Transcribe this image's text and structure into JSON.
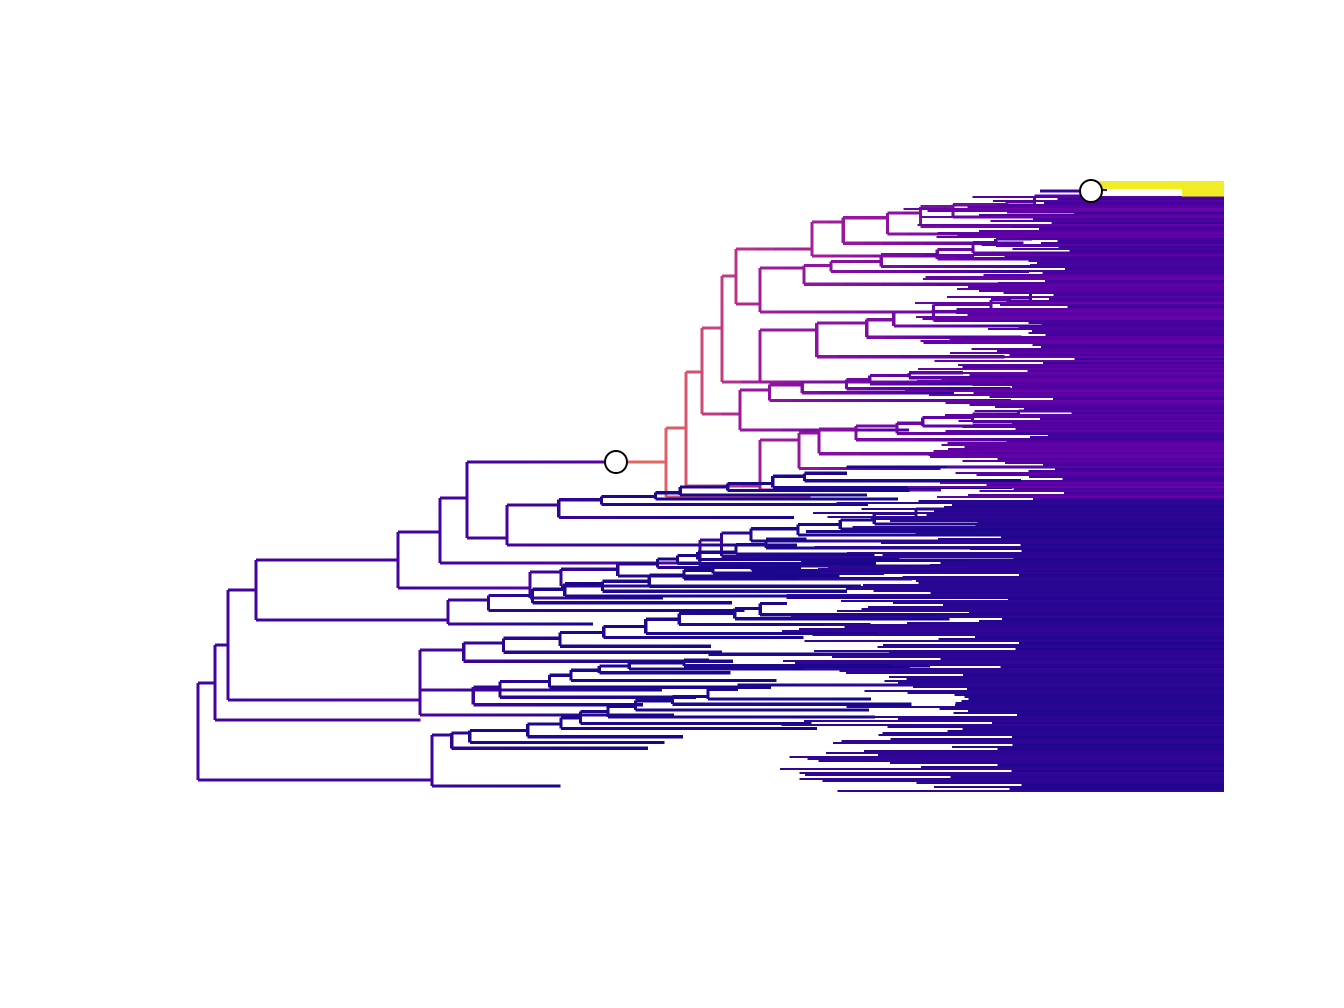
{
  "diagram": {
    "type": "phylogenetic-tree",
    "orientation": "rightwards",
    "branch_color_scale": "plasma",
    "colors": {
      "background": "#ffffff",
      "scale_low": "#0d0887",
      "scale_mid_low": "#5c01a6",
      "scale_mid": "#9c179e",
      "scale_mid_high": "#cc4778",
      "scale_high": "#ed7953",
      "scale_top": "#f0f921",
      "node_marker_fill": "#ffffff",
      "node_marker_stroke": "#000000"
    },
    "highlighted_nodes": [
      {
        "name": "shift-node-clade-root",
        "rate_level": 0.62
      },
      {
        "name": "shift-node-top-tip",
        "rate_level": 1.0
      }
    ],
    "tip_count_visible": "many",
    "legend": null,
    "title": ""
  }
}
